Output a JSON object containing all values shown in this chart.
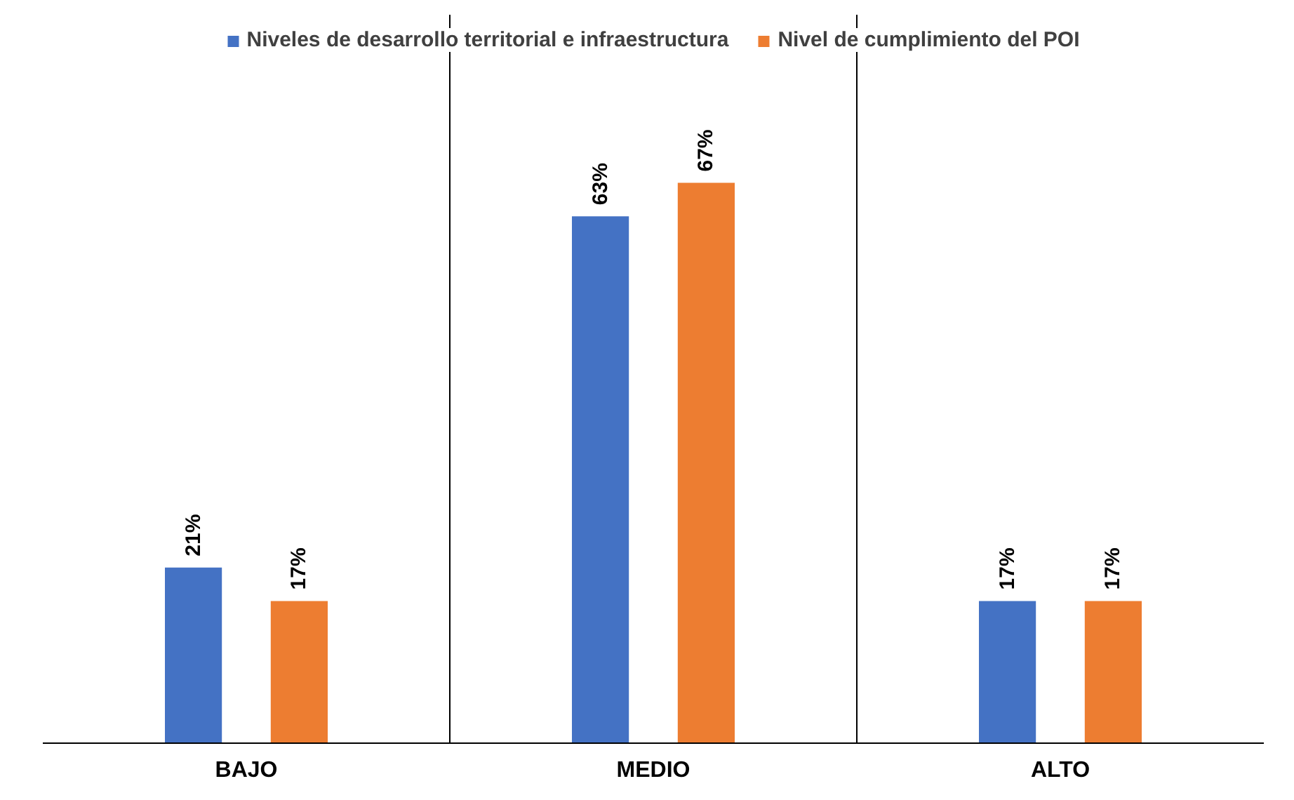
{
  "chart_data": {
    "type": "bar",
    "categories": [
      "BAJO",
      "MEDIO",
      "ALTO"
    ],
    "series": [
      {
        "name": "Niveles de desarrollo territorial e infraestructura",
        "color": "#4472c4",
        "values": [
          21,
          63,
          17
        ],
        "value_labels": [
          "21%",
          "63%",
          "17%"
        ]
      },
      {
        "name": "Nivel de cumplimiento del POI",
        "color": "#ed7d31",
        "values": [
          17,
          67,
          17
        ],
        "value_labels": [
          "17%",
          "67%",
          "17%"
        ]
      }
    ],
    "grid": "x",
    "legend": "top",
    "tick_labels": "x"
  }
}
